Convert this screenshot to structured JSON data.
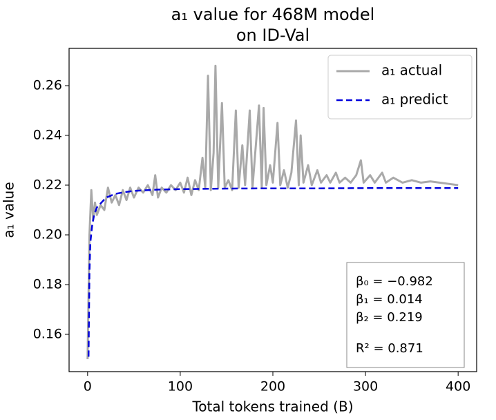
{
  "chart_data": {
    "type": "line",
    "title": [
      "a₁ value for 468M model",
      "on ID-Val"
    ],
    "x_label": "Total tokens trained (B)",
    "y_label": "a₁ value",
    "xlim": [
      -20,
      420
    ],
    "ylim": [
      0.145,
      0.275
    ],
    "xticks": [
      0,
      100,
      200,
      300,
      400
    ],
    "yticks": [
      0.16,
      0.18,
      {
        "value": 0.2,
        "label": "0.20"
      },
      0.22,
      0.24,
      0.26
    ],
    "legend": "upper right",
    "annotations": [
      "β₀ = −0.982",
      "β₁ = 0.014",
      "β₂ = 0.219",
      "R² = 0.871"
    ],
    "series": [
      {
        "name": "a₁ actual",
        "color": "#a9a9a9",
        "style": "solid",
        "x": [
          0,
          2,
          4,
          6,
          8,
          10,
          14,
          18,
          22,
          26,
          30,
          34,
          38,
          42,
          46,
          50,
          55,
          60,
          65,
          70,
          73,
          76,
          80,
          85,
          90,
          95,
          100,
          104,
          108,
          112,
          116,
          120,
          124,
          127,
          130,
          133,
          136,
          138,
          141,
          145,
          148,
          152,
          156,
          160,
          163,
          167,
          170,
          175,
          178,
          182,
          185,
          188,
          190,
          193,
          197,
          200,
          205,
          208,
          212,
          216,
          220,
          225,
          228,
          230,
          233,
          238,
          242,
          248,
          252,
          258,
          262,
          268,
          272,
          278,
          284,
          290,
          295,
          298,
          305,
          310,
          318,
          322,
          330,
          340,
          350,
          360,
          370,
          380,
          390,
          400
        ],
        "values": [
          0.15,
          0.2,
          0.218,
          0.206,
          0.213,
          0.208,
          0.212,
          0.21,
          0.219,
          0.213,
          0.216,
          0.212,
          0.218,
          0.214,
          0.219,
          0.215,
          0.219,
          0.217,
          0.22,
          0.216,
          0.224,
          0.215,
          0.219,
          0.217,
          0.22,
          0.218,
          0.221,
          0.217,
          0.223,
          0.216,
          0.222,
          0.218,
          0.231,
          0.219,
          0.264,
          0.218,
          0.233,
          0.268,
          0.219,
          0.253,
          0.219,
          0.222,
          0.218,
          0.25,
          0.219,
          0.236,
          0.22,
          0.25,
          0.219,
          0.238,
          0.252,
          0.219,
          0.251,
          0.22,
          0.228,
          0.221,
          0.245,
          0.22,
          0.226,
          0.219,
          0.225,
          0.246,
          0.22,
          0.24,
          0.221,
          0.228,
          0.22,
          0.226,
          0.221,
          0.224,
          0.221,
          0.225,
          0.221,
          0.223,
          0.221,
          0.224,
          0.23,
          0.221,
          0.224,
          0.221,
          0.225,
          0.221,
          0.223,
          0.221,
          0.222,
          0.221,
          0.2215,
          0.221,
          0.2205,
          0.22
        ]
      },
      {
        "name": "a₁ predict",
        "color": "#0000dd",
        "style": "dashed",
        "x": [
          1,
          2,
          3,
          5,
          7,
          10,
          15,
          20,
          30,
          40,
          50,
          75,
          100,
          150,
          200,
          250,
          300,
          350,
          400
        ],
        "values": [
          0.151,
          0.185,
          0.197,
          0.204,
          0.208,
          0.211,
          0.213,
          0.215,
          0.2165,
          0.2172,
          0.2177,
          0.2182,
          0.2184,
          0.2186,
          0.2187,
          0.2187,
          0.2188,
          0.2188,
          0.2188
        ]
      }
    ]
  }
}
